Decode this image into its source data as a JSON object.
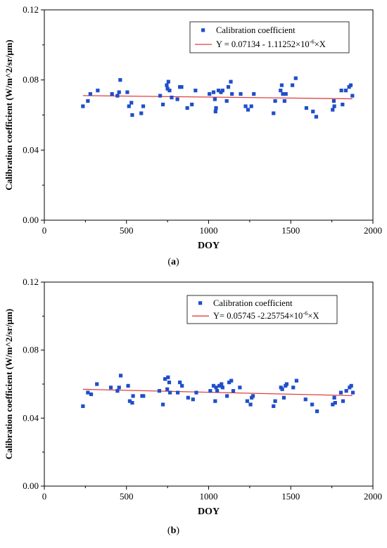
{
  "chart_data": [
    {
      "type": "scatter",
      "panel_label": "(a)",
      "xlabel": "DOY",
      "ylabel": "Calibration coefficient (W/m^2/sr/μm)",
      "xlim": [
        0,
        2000
      ],
      "ylim": [
        0,
        0.12
      ],
      "xticks": [
        "0",
        "500",
        "1000",
        "1500",
        "2000"
      ],
      "yticks": [
        "0.00",
        "0.04",
        "0.08",
        "0.12"
      ],
      "grid": false,
      "legend_position": "top-right",
      "point_color": "#1f4fc9",
      "line_color": "#e04040",
      "series": [
        {
          "name": "Calibration coefficient",
          "x": [
            235,
            265,
            280,
            325,
            412,
            445,
            455,
            462,
            505,
            515,
            530,
            535,
            590,
            602,
            705,
            722,
            745,
            750,
            755,
            762,
            775,
            810,
            825,
            835,
            870,
            898,
            920,
            1005,
            1030,
            1038,
            1042,
            1045,
            1060,
            1075,
            1085,
            1110,
            1120,
            1135,
            1142,
            1195,
            1225,
            1240,
            1260,
            1275,
            1395,
            1405,
            1438,
            1445,
            1452,
            1462,
            1470,
            1510,
            1530,
            1595,
            1635,
            1655,
            1755,
            1762,
            1765,
            1808,
            1815,
            1835,
            1855,
            1865,
            1875
          ],
          "y": [
            0.065,
            0.068,
            0.072,
            0.074,
            0.072,
            0.071,
            0.073,
            0.08,
            0.073,
            0.065,
            0.067,
            0.06,
            0.061,
            0.065,
            0.071,
            0.066,
            0.077,
            0.075,
            0.079,
            0.074,
            0.07,
            0.069,
            0.076,
            0.076,
            0.064,
            0.066,
            0.074,
            0.072,
            0.073,
            0.069,
            0.062,
            0.064,
            0.074,
            0.073,
            0.074,
            0.068,
            0.076,
            0.079,
            0.072,
            0.072,
            0.065,
            0.063,
            0.065,
            0.072,
            0.061,
            0.068,
            0.074,
            0.077,
            0.072,
            0.068,
            0.072,
            0.077,
            0.081,
            0.064,
            0.062,
            0.059,
            0.063,
            0.068,
            0.065,
            0.074,
            0.066,
            0.074,
            0.076,
            0.077,
            0.071
          ]
        },
        {
          "name": "Y = 0.07134 - 1.11252×10",
          "name_sup": "-6",
          "name_tail": "×X",
          "intercept": 0.07134,
          "slope": -1.11252e-06,
          "x_range": [
            235,
            1875
          ]
        }
      ]
    },
    {
      "type": "scatter",
      "panel_label": "(b)",
      "xlabel": "DOY",
      "ylabel": "Calibration coefficient (W/m^2/sr/μm)",
      "xlim": [
        0,
        2000
      ],
      "ylim": [
        0,
        0.12
      ],
      "xticks": [
        "0",
        "500",
        "1000",
        "1500",
        "2000"
      ],
      "yticks": [
        "0.00",
        "0.04",
        "0.08",
        "0.12"
      ],
      "grid": false,
      "legend_position": "top-right",
      "point_color": "#1f4fc9",
      "line_color": "#e04040",
      "series": [
        {
          "name": "Calibration coefficient",
          "x": [
            235,
            265,
            285,
            320,
            405,
            445,
            455,
            465,
            510,
            520,
            535,
            540,
            595,
            603,
            700,
            722,
            735,
            748,
            753,
            760,
            765,
            812,
            825,
            838,
            875,
            905,
            925,
            1010,
            1030,
            1040,
            1045,
            1052,
            1065,
            1078,
            1085,
            1112,
            1125,
            1138,
            1150,
            1190,
            1235,
            1255,
            1262,
            1270,
            1395,
            1405,
            1440,
            1448,
            1458,
            1468,
            1475,
            1515,
            1535,
            1590,
            1630,
            1660,
            1755,
            1765,
            1770,
            1805,
            1818,
            1838,
            1858,
            1868,
            1878
          ],
          "y": [
            0.047,
            0.055,
            0.054,
            0.06,
            0.058,
            0.056,
            0.058,
            0.065,
            0.059,
            0.05,
            0.049,
            0.053,
            0.053,
            0.053,
            0.056,
            0.048,
            0.063,
            0.057,
            0.064,
            0.061,
            0.055,
            0.055,
            0.061,
            0.059,
            0.052,
            0.051,
            0.055,
            0.056,
            0.059,
            0.05,
            0.058,
            0.056,
            0.059,
            0.06,
            0.058,
            0.053,
            0.061,
            0.062,
            0.056,
            0.058,
            0.05,
            0.048,
            0.052,
            0.053,
            0.047,
            0.05,
            0.058,
            0.057,
            0.052,
            0.059,
            0.06,
            0.058,
            0.062,
            0.051,
            0.048,
            0.044,
            0.048,
            0.052,
            0.049,
            0.055,
            0.05,
            0.056,
            0.058,
            0.059,
            0.055
          ]
        },
        {
          "name": "Y= 0.05745 -2.25754×10",
          "name_sup": "-6",
          "name_tail": "×X",
          "intercept": 0.05745,
          "slope": -2.25754e-06,
          "x_range": [
            235,
            1875
          ]
        }
      ]
    }
  ]
}
